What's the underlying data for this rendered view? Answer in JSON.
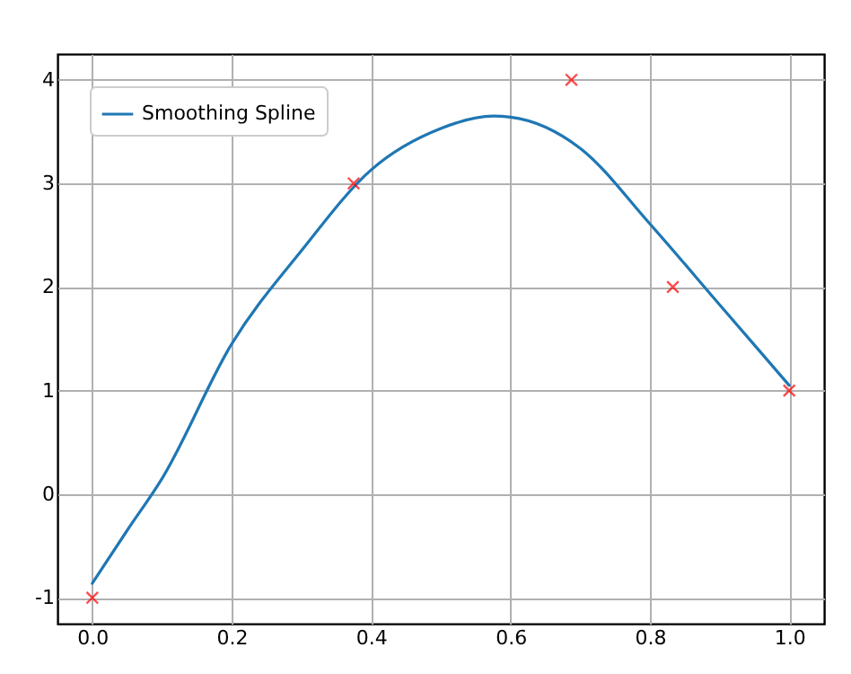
{
  "chart_data": {
    "type": "line",
    "xlim": [
      -0.05,
      1.05
    ],
    "ylim": [
      -1.25,
      4.25
    ],
    "xticks": [
      {
        "value": 0,
        "label": "0.0"
      },
      0.2,
      0.4,
      0.6,
      0.8,
      {
        "value": 1,
        "label": "1.0"
      }
    ],
    "yticks": [
      -1,
      0,
      1,
      2,
      3,
      4
    ],
    "grid": true,
    "legend": "top left",
    "series": [
      {
        "name": "Smoothing Spline",
        "color": "#1f77b4",
        "x": [
          0,
          0.05,
          0.1,
          0.2,
          0.3,
          0.4,
          0.5,
          0.575,
          0.6,
          0.7,
          0.8,
          0.9,
          1
        ],
        "values": [
          -0.86,
          -0.35,
          0.15,
          1.45,
          2.35,
          3.13,
          3.53,
          3.65,
          3.64,
          3.34,
          2.61,
          1.83,
          1.05
        ]
      },
      {
        "type": "scatter",
        "color": "#ff0000",
        "marker": "cross",
        "x": [
          0,
          0.375,
          0.6875,
          0.833,
          1
        ],
        "values": [
          -1,
          3,
          4,
          2,
          1
        ]
      }
    ]
  }
}
